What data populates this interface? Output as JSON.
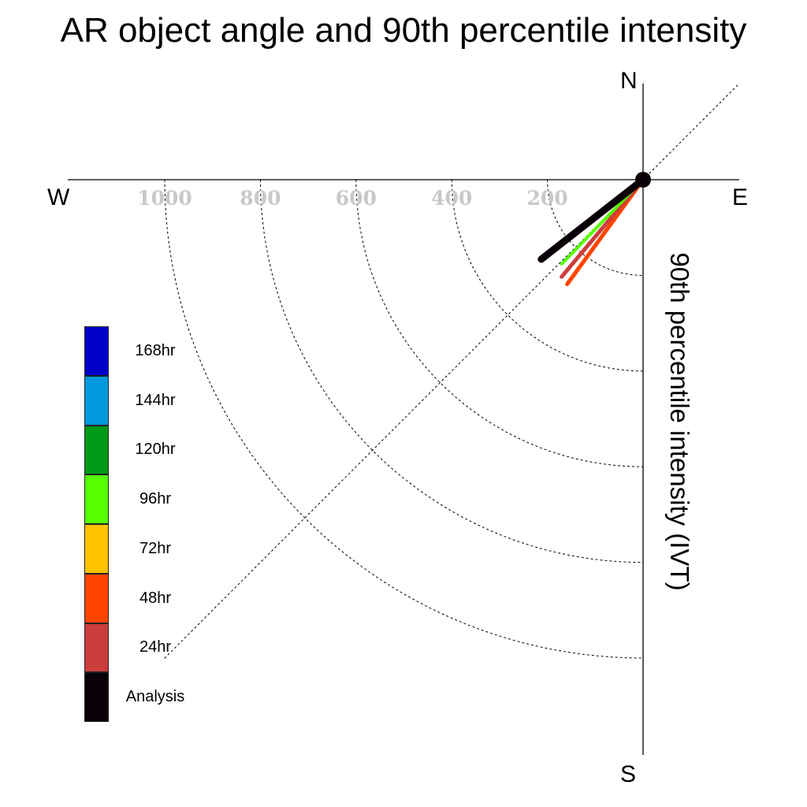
{
  "chart_data": {
    "type": "polar-vector",
    "title": "AR object angle and 90th percentile intensity",
    "ylabel": "90th percentile intensity (IVT)",
    "directions": {
      "north": "N",
      "south": "S",
      "east": "E",
      "west": "W"
    },
    "radial_ticks": [
      200,
      400,
      600,
      800,
      1000
    ],
    "radial_max": 1000,
    "grid": true,
    "legend_placement": "left",
    "series": [
      {
        "name": "Analysis",
        "color": "#0a0008",
        "direction_deg": 232,
        "magnitude": 270
      },
      {
        "name": "24hr",
        "color": "#cc3d3d",
        "direction_deg": 220,
        "magnitude": 265
      },
      {
        "name": "48hr",
        "color": "#ff4400",
        "direction_deg": 216,
        "magnitude": 270
      },
      {
        "name": "72hr",
        "color": "#ffc200",
        "direction_deg": 216,
        "magnitude": 268
      },
      {
        "name": "96hr",
        "color": "#55ff00",
        "direction_deg": 224,
        "magnitude": 245
      },
      {
        "name": "120hr",
        "color": "#009a18",
        "direction_deg": 224,
        "magnitude": 115
      },
      {
        "name": "144hr",
        "color": "#0099dd",
        "direction_deg": null,
        "magnitude": null
      },
      {
        "name": "168hr",
        "color": "#0000c8",
        "direction_deg": null,
        "magnitude": null
      }
    ]
  }
}
